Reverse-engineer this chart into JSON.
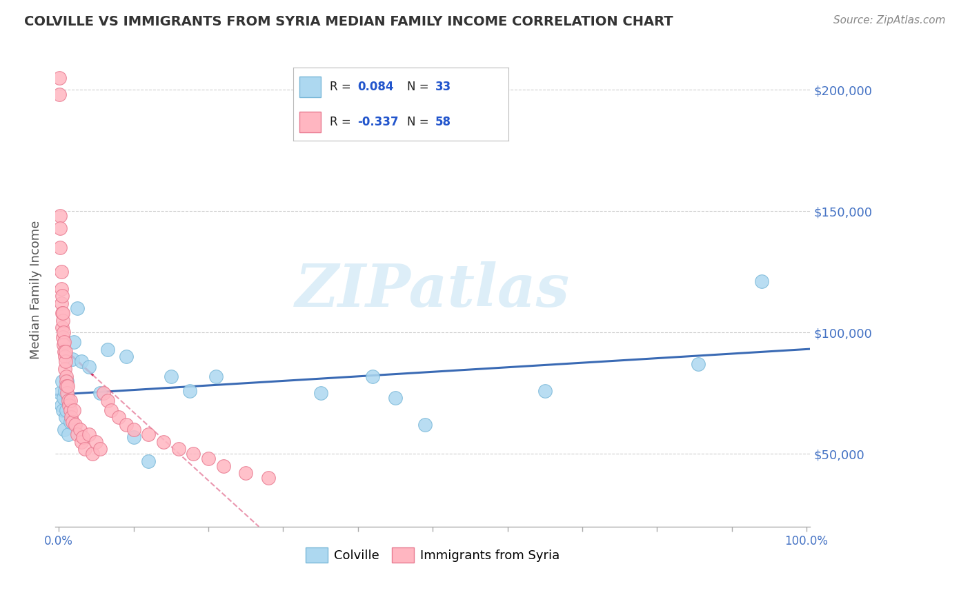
{
  "title": "COLVILLE VS IMMIGRANTS FROM SYRIA MEDIAN FAMILY INCOME CORRELATION CHART",
  "source": "Source: ZipAtlas.com",
  "ylabel": "Median Family Income",
  "colville_R": 0.084,
  "colville_N": 33,
  "syria_R": -0.337,
  "syria_N": 58,
  "yticks": [
    50000,
    100000,
    150000,
    200000
  ],
  "ytick_labels": [
    "$50,000",
    "$100,000",
    "$150,000",
    "$200,000"
  ],
  "ylim": [
    20000,
    215000
  ],
  "xlim": [
    -0.005,
    1.005
  ],
  "colville_color": "#ADD8F0",
  "colville_edge": "#7AB8D8",
  "syria_color": "#FFB6C1",
  "syria_edge": "#E87A90",
  "regression_colville_color": "#3A6AB4",
  "regression_syria_color": "#D63060",
  "watermark_color": "#DDEEF8",
  "colville_x": [
    0.002,
    0.003,
    0.004,
    0.005,
    0.006,
    0.007,
    0.008,
    0.009,
    0.01,
    0.011,
    0.012,
    0.013,
    0.015,
    0.018,
    0.02,
    0.025,
    0.03,
    0.04,
    0.055,
    0.065,
    0.09,
    0.1,
    0.12,
    0.15,
    0.175,
    0.21,
    0.35,
    0.42,
    0.45,
    0.49,
    0.65,
    0.855,
    0.94
  ],
  "colville_y": [
    75000,
    70000,
    80000,
    68000,
    73000,
    60000,
    76000,
    65000,
    68000,
    80000,
    74000,
    58000,
    63000,
    89000,
    96000,
    110000,
    88000,
    86000,
    75000,
    93000,
    90000,
    57000,
    47000,
    82000,
    76000,
    82000,
    75000,
    82000,
    73000,
    62000,
    76000,
    87000,
    121000
  ],
  "syria_x": [
    0.001,
    0.001,
    0.002,
    0.002,
    0.002,
    0.003,
    0.003,
    0.003,
    0.004,
    0.004,
    0.004,
    0.005,
    0.005,
    0.005,
    0.006,
    0.006,
    0.007,
    0.007,
    0.008,
    0.008,
    0.009,
    0.009,
    0.01,
    0.01,
    0.01,
    0.011,
    0.012,
    0.013,
    0.014,
    0.015,
    0.015,
    0.016,
    0.018,
    0.02,
    0.022,
    0.025,
    0.028,
    0.03,
    0.032,
    0.035,
    0.04,
    0.045,
    0.05,
    0.055,
    0.06,
    0.065,
    0.07,
    0.08,
    0.09,
    0.1,
    0.12,
    0.14,
    0.16,
    0.18,
    0.2,
    0.22,
    0.25,
    0.28
  ],
  "syria_y": [
    205000,
    198000,
    148000,
    143000,
    135000,
    125000,
    118000,
    112000,
    108000,
    102000,
    115000,
    98000,
    105000,
    108000,
    100000,
    95000,
    96000,
    92000,
    90000,
    85000,
    88000,
    92000,
    82000,
    80000,
    78000,
    75000,
    78000,
    72000,
    70000,
    68000,
    72000,
    65000,
    63000,
    68000,
    62000,
    58000,
    60000,
    55000,
    57000,
    52000,
    58000,
    50000,
    55000,
    52000,
    75000,
    72000,
    68000,
    65000,
    62000,
    60000,
    58000,
    55000,
    52000,
    50000,
    48000,
    45000,
    42000,
    40000
  ]
}
